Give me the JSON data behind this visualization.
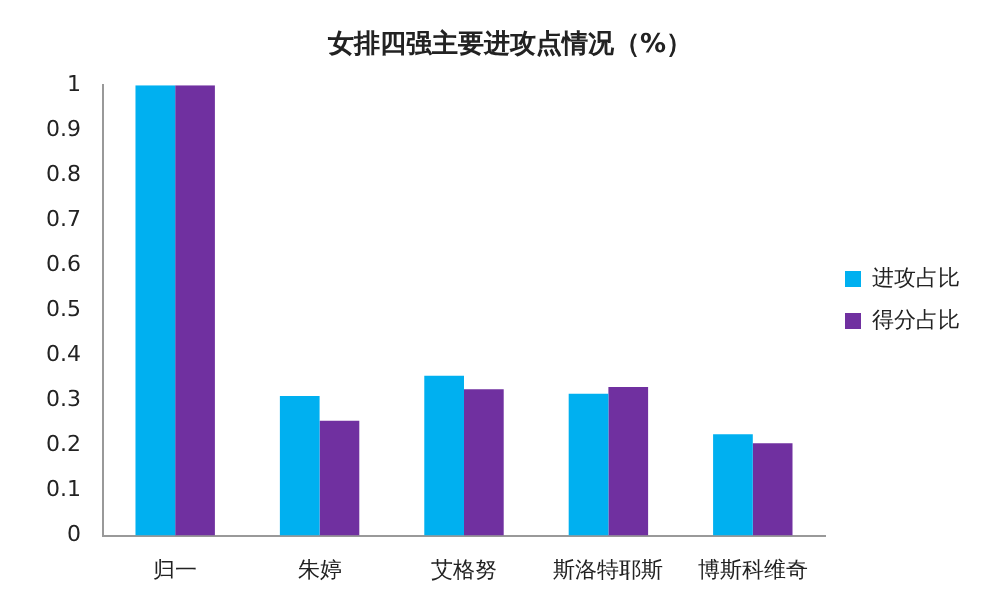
{
  "chart_data": {
    "type": "bar",
    "title": "女排四强主要进攻点情况（%）",
    "categories": [
      "归一",
      "朱婷",
      "艾格努",
      "斯洛特耶斯",
      "博斯科维奇"
    ],
    "series": [
      {
        "name": "进攻占比",
        "color": "#00b0f0",
        "values": [
          1,
          0.31,
          0.355,
          0.315,
          0.225
        ]
      },
      {
        "name": "得分占比",
        "color": "#7030a0",
        "values": [
          1,
          0.255,
          0.325,
          0.33,
          0.205
        ]
      }
    ],
    "ylim": [
      0,
      1
    ],
    "yticks": [
      0,
      0.1,
      0.2,
      0.3,
      0.4,
      0.5,
      0.6,
      0.7,
      0.8,
      0.9,
      1
    ],
    "grid": false,
    "legend": "right"
  }
}
